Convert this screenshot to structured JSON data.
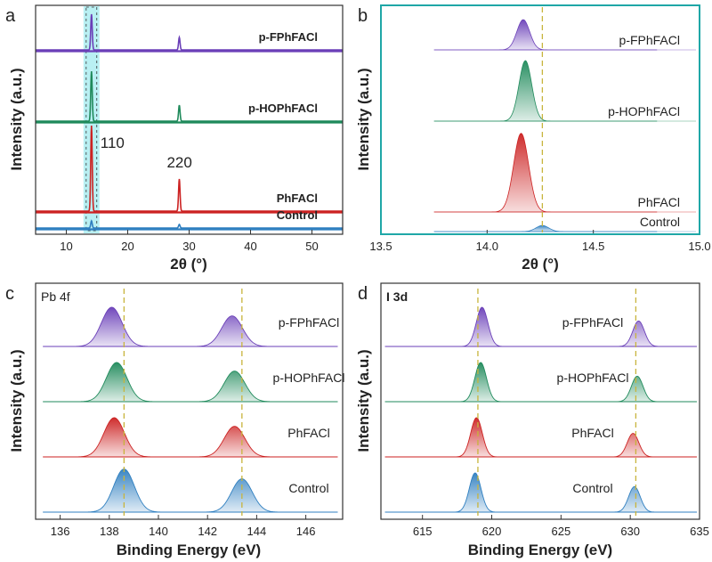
{
  "colors": {
    "p-FPhFACl": "#6a3fb8",
    "p-HOPhFACl": "#1f8a5b",
    "PhFACl": "#cc2222",
    "Control": "#2f7fc0",
    "guide": "#c8b43c",
    "highlight": "#7fe3ea",
    "frame_b": "#1fa7a7"
  },
  "chart_data": [
    {
      "panel": "a",
      "type": "line",
      "xlabel": "2θ (°)",
      "ylabel": "Intensity (a.u.)",
      "xlim": [
        5,
        55
      ],
      "xticks": [
        "10",
        "20",
        "30",
        "40",
        "50"
      ],
      "label_style": "bold",
      "series": [
        {
          "name": "p-FPhFACl",
          "offset": 3,
          "peaks": [
            [
              14.1,
              1.0
            ],
            [
              28.4,
              0.35
            ]
          ]
        },
        {
          "name": "p-HOPhFACl",
          "offset": 2,
          "peaks": [
            [
              14.1,
              1.4
            ],
            [
              28.4,
              0.45
            ]
          ]
        },
        {
          "name": "PhFACl",
          "offset": 1,
          "peaks": [
            [
              14.1,
              2.4
            ],
            [
              28.4,
              0.9
            ]
          ]
        },
        {
          "name": "Control",
          "offset": 0,
          "peaks": [
            [
              14.1,
              0.2
            ],
            [
              28.4,
              0.1
            ]
          ]
        }
      ],
      "annotations": [
        {
          "text": "110",
          "x": 14.1
        },
        {
          "text": "220",
          "x": 28.4
        }
      ],
      "highlight_range": [
        12.8,
        15.4
      ]
    },
    {
      "panel": "b",
      "type": "area",
      "xlabel": "2θ (°)",
      "ylabel": "Intensity (a.u.)",
      "xlim": [
        13.5,
        15.0
      ],
      "xticks": [
        "13.5",
        "14.0",
        "14.5",
        "15.0"
      ],
      "guide_lines": [
        14.26
      ],
      "series": [
        {
          "name": "p-FPhFACl",
          "offset": 3,
          "center": 14.17,
          "height": 1.0,
          "width": 0.03
        },
        {
          "name": "p-HOPhFACl",
          "offset": 2,
          "center": 14.18,
          "height": 2.0,
          "width": 0.03
        },
        {
          "name": "PhFACl",
          "offset": 1,
          "center": 14.16,
          "height": 2.6,
          "width": 0.035
        },
        {
          "name": "Control",
          "offset": 0,
          "center": 14.26,
          "height": 0.2,
          "width": 0.03
        }
      ]
    },
    {
      "panel": "c",
      "type": "area",
      "inset_label": "Pb 4f",
      "xlabel": "Binding Energy (eV)",
      "ylabel": "Intensity (a.u.)",
      "xlim": [
        135,
        147.5
      ],
      "xticks": [
        "136",
        "138",
        "140",
        "142",
        "144",
        "146"
      ],
      "guide_lines": [
        138.6,
        143.4
      ],
      "series": [
        {
          "name": "p-FPhFACl",
          "offset": 3,
          "peaks": [
            [
              138.1,
              1.0
            ],
            [
              143.0,
              0.78
            ]
          ]
        },
        {
          "name": "p-HOPhFACl",
          "offset": 2,
          "peaks": [
            [
              138.3,
              1.0
            ],
            [
              143.1,
              0.78
            ]
          ]
        },
        {
          "name": "PhFACl",
          "offset": 1,
          "peaks": [
            [
              138.2,
              1.0
            ],
            [
              143.1,
              0.78
            ]
          ]
        },
        {
          "name": "Control",
          "offset": 0,
          "peaks": [
            [
              138.6,
              1.1
            ],
            [
              143.4,
              0.85
            ]
          ]
        }
      ]
    },
    {
      "panel": "d",
      "type": "area",
      "inset_label": "I 3d",
      "xlabel": "Binding Energy (eV)",
      "ylabel": "Intensity (a.u.)",
      "xlim": [
        612,
        635
      ],
      "xticks": [
        "615",
        "620",
        "625",
        "630",
        "635"
      ],
      "guide_lines": [
        619.0,
        630.4
      ],
      "series": [
        {
          "name": "p-FPhFACl",
          "offset": 3,
          "peaks": [
            [
              619.3,
              1.0
            ],
            [
              630.6,
              0.65
            ]
          ]
        },
        {
          "name": "p-HOPhFACl",
          "offset": 2,
          "peaks": [
            [
              619.2,
              1.0
            ],
            [
              630.5,
              0.65
            ]
          ]
        },
        {
          "name": "PhFACl",
          "offset": 1,
          "peaks": [
            [
              618.9,
              1.0
            ],
            [
              630.2,
              0.6
            ]
          ]
        },
        {
          "name": "Control",
          "offset": 0,
          "peaks": [
            [
              618.8,
              1.0
            ],
            [
              630.3,
              0.65
            ]
          ]
        }
      ]
    }
  ]
}
